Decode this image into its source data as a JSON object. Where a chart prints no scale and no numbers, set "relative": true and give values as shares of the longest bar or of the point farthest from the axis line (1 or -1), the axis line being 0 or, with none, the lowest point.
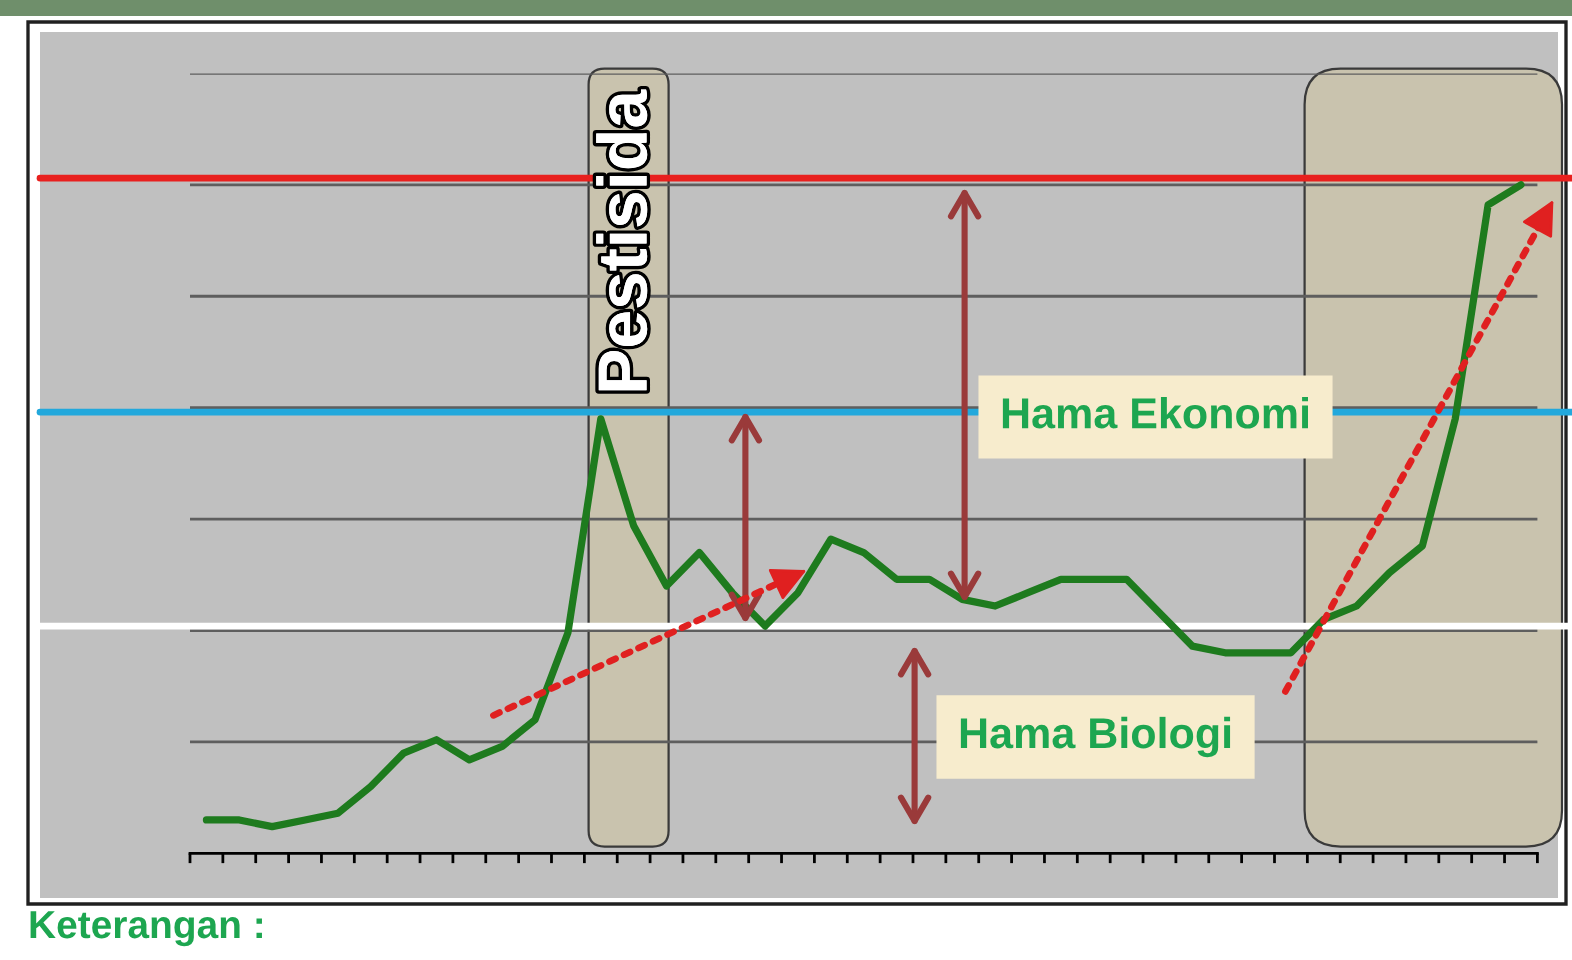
{
  "chart_data": {
    "type": "line",
    "relative": true,
    "grid": "y",
    "categories": [
      null,
      null,
      null,
      null,
      null,
      null,
      null,
      null,
      null,
      null,
      null,
      null,
      null,
      null,
      null,
      null,
      null,
      null,
      null,
      null,
      null,
      null,
      null,
      null,
      null,
      null,
      null,
      null,
      null,
      null,
      null,
      null,
      null,
      null,
      null,
      null,
      null,
      null,
      null,
      null,
      null
    ],
    "series": [
      {
        "color": "#1E7B1E",
        "values": [
          0.05,
          0.05,
          0.04,
          0.05,
          0.06,
          0.1,
          0.15,
          0.17,
          0.14,
          0.16,
          0.2,
          0.33,
          0.65,
          0.49,
          0.4,
          0.45,
          0.39,
          0.34,
          0.39,
          0.47,
          0.45,
          0.41,
          0.41,
          0.38,
          0.37,
          0.39,
          0.41,
          0.41,
          0.41,
          0.36,
          0.31,
          0.3,
          0.3,
          0.3,
          0.35,
          0.37,
          0.42,
          0.46,
          0.65,
          0.97,
          1.0
        ]
      }
    ],
    "ref_lines": [
      {
        "axis": "y",
        "value": 1.01,
        "color": "#E8201E"
      },
      {
        "axis": "y",
        "value": 0.66,
        "color": "#22A8DC"
      },
      {
        "axis": "y",
        "value": 0.34,
        "color": "#FFFFFF"
      }
    ],
    "annotations": [
      "Pestisida",
      "Hama Ekonomi",
      "Hama Biologi",
      "Keterangan :"
    ]
  }
}
